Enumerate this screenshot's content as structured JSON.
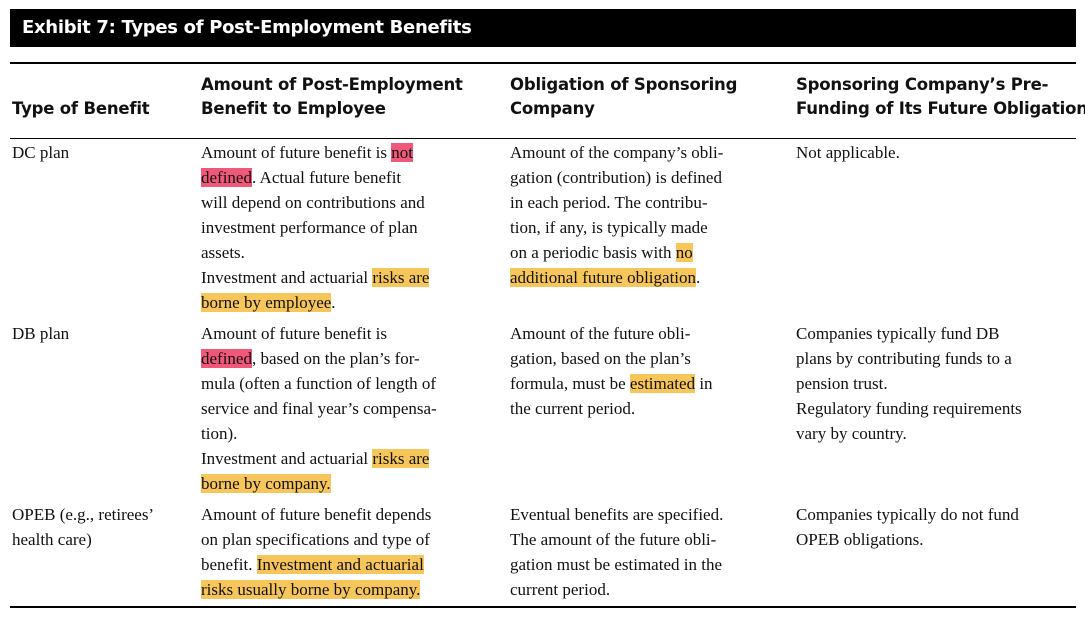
{
  "title": "Exhibit 7: Types of Post-Employment Benefits",
  "headers": {
    "type": "Type of Benefit",
    "amount": [
      "Amount of Post-Employment",
      "Benefit to Employee"
    ],
    "obligation": [
      "Obligation of Sponsoring",
      "Company"
    ],
    "prefunding": [
      "Sponsoring Company’s Pre-",
      "Funding of Its Future Obligation"
    ]
  },
  "rows": [
    {
      "type": [
        "DC plan"
      ],
      "amount": {
        "l1a": "Amount of future benefit is ",
        "l1b": "not",
        "l2a": "defined",
        "l2b": ". Actual future benefit",
        "l3": "will depend on contributions and",
        "l4": "investment performance of plan",
        "l5": "assets.",
        "l6a": "Investment and actuarial ",
        "l6b": "risks are",
        "l7a": "borne by employee",
        "l7b": "."
      },
      "obligation": {
        "l1": "Amount of the company’s obli-",
        "l2": "gation (contribution) is defined",
        "l3": "in each period. The contribu-",
        "l4": "tion, if any, is typically made",
        "l5a": "on a periodic basis with ",
        "l5b": "no",
        "l6a": "additional future obligation",
        "l6b": "."
      },
      "prefunding": [
        "Not applicable."
      ]
    },
    {
      "type": [
        "DB plan"
      ],
      "amount": {
        "l1": "Amount of future benefit is",
        "l2a": "defined",
        "l2b": ", based on the plan’s for-",
        "l3": "mula (often a function of length of",
        "l4": "service and final year’s compensa-",
        "l5": "tion).",
        "l6a": "Investment and actuarial ",
        "l6b": "risks are",
        "l7a": "borne by company."
      },
      "obligation": {
        "l1": "Amount of the future obli-",
        "l2": "gation, based on the plan’s",
        "l3a": "formula, must be ",
        "l3b": "estimated",
        "l3c": " in",
        "l4": "the current period."
      },
      "prefunding": [
        "Companies typically fund DB",
        "plans by contributing funds to a",
        "pension trust.",
        "Regulatory funding requirements",
        "vary by country."
      ]
    },
    {
      "type": [
        "OPEB (e.g., retirees’",
        "health care)"
      ],
      "amount": {
        "l1": "Amount of future benefit depends",
        "l2": "on plan specifications and type of",
        "l3a": "benefit. ",
        "l3b": "Investment and actuarial",
        "l4a": "risks usually borne by company."
      },
      "obligation": {
        "l1": "Eventual benefits are specified.",
        "l2": "The amount of the future obli-",
        "l3": "gation must be estimated in the",
        "l4": "current period."
      },
      "prefunding": [
        "Companies typically do not fund",
        "OPEB obligations."
      ]
    }
  ]
}
